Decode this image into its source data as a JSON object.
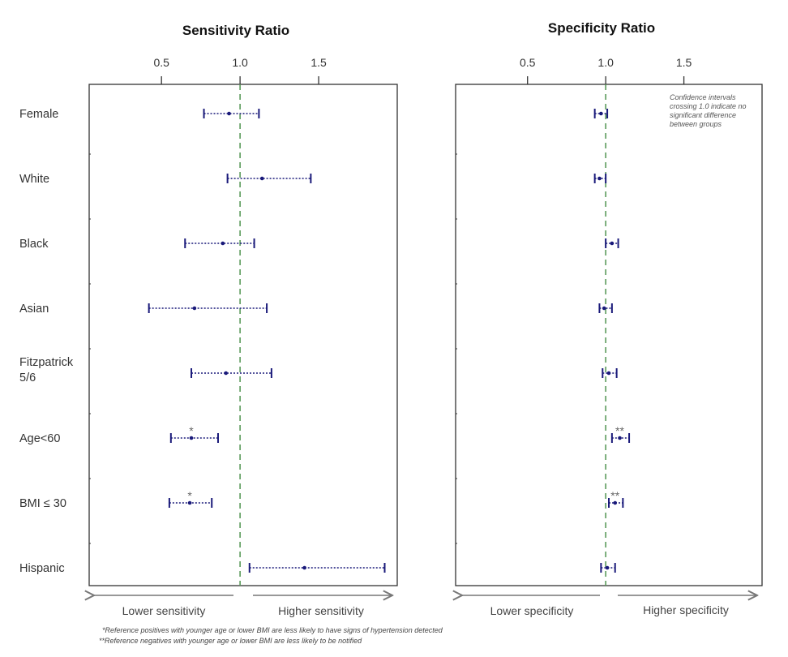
{
  "chart_data": [
    {
      "type": "forest",
      "title": "Sensitivity Ratio",
      "xticks": [
        0.5,
        1.0,
        1.5
      ],
      "tick_labels": [
        "0.5",
        "1.0",
        "1.5"
      ],
      "xlim": [
        0.04,
        2.0
      ],
      "reference": 1.0,
      "left_label": "Lower sensitivity",
      "right_label": "Higher sensitivity",
      "rows": [
        {
          "category": "Female",
          "lower": 0.77,
          "estimate": 0.93,
          "upper": 1.12,
          "mark": ""
        },
        {
          "category": "White",
          "lower": 0.92,
          "estimate": 1.14,
          "upper": 1.45,
          "mark": ""
        },
        {
          "category": "Black",
          "lower": 0.65,
          "estimate": 0.89,
          "upper": 1.09,
          "mark": ""
        },
        {
          "category": "Asian",
          "lower": 0.42,
          "estimate": 0.71,
          "upper": 1.17,
          "mark": ""
        },
        {
          "category": "Fitzpatrick 5/6",
          "lower": 0.69,
          "estimate": 0.91,
          "upper": 1.2,
          "mark": ""
        },
        {
          "category": "Age<60",
          "lower": 0.56,
          "estimate": 0.69,
          "upper": 0.86,
          "mark": "*"
        },
        {
          "category": "BMI ≤ 30",
          "lower": 0.55,
          "estimate": 0.68,
          "upper": 0.82,
          "mark": "*"
        },
        {
          "category": "Hispanic",
          "lower": 1.06,
          "estimate": 1.41,
          "upper": 1.92,
          "mark": ""
        }
      ]
    },
    {
      "type": "forest",
      "title": "Specificity Ratio",
      "xticks": [
        0.5,
        1.0,
        1.5
      ],
      "tick_labels": [
        "0.5",
        "1.0",
        "1.5"
      ],
      "xlim": [
        0.04,
        2.0
      ],
      "reference": 1.0,
      "left_label": "Lower specificity",
      "right_label": "Higher specificity",
      "annotation": [
        "Confidence intervals",
        "crossing 1.0 indicate no",
        "significant difference",
        "between groups"
      ],
      "rows": [
        {
          "category": "Female",
          "lower": 0.93,
          "estimate": 0.97,
          "upper": 1.01,
          "mark": ""
        },
        {
          "category": "White",
          "lower": 0.93,
          "estimate": 0.96,
          "upper": 1.0,
          "mark": ""
        },
        {
          "category": "Black",
          "lower": 1.0,
          "estimate": 1.04,
          "upper": 1.08,
          "mark": ""
        },
        {
          "category": "Asian",
          "lower": 0.96,
          "estimate": 0.99,
          "upper": 1.04,
          "mark": ""
        },
        {
          "category": "Fitzpatrick 5/6",
          "lower": 0.98,
          "estimate": 1.02,
          "upper": 1.07,
          "mark": ""
        },
        {
          "category": "Age<60",
          "lower": 1.04,
          "estimate": 1.09,
          "upper": 1.15,
          "mark": "**"
        },
        {
          "category": "BMI ≤ 30",
          "lower": 1.02,
          "estimate": 1.06,
          "upper": 1.11,
          "mark": "**"
        },
        {
          "category": "Hispanic",
          "lower": 0.97,
          "estimate": 1.01,
          "upper": 1.06,
          "mark": ""
        }
      ]
    }
  ],
  "footnotes": [
    "*Reference positives with younger age or lower BMI are less likely to have signs of hypertension detected",
    "**Reference negatives with younger age or lower BMI are less likely to be notified"
  ],
  "colors": {
    "ci": "#1a1a7a",
    "reference_line": "#5a9a5a",
    "frame": "#333333",
    "arrow": "#777777"
  }
}
